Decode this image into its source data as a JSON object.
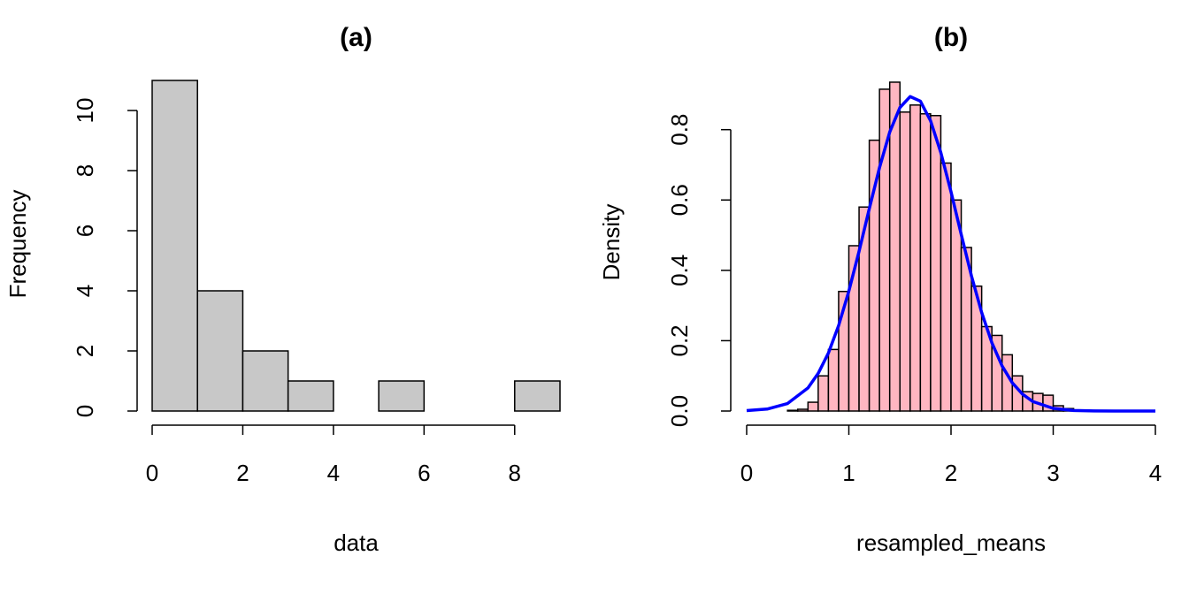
{
  "chart_data": [
    {
      "type": "histogram",
      "title": "(a)",
      "xlabel": "data",
      "ylabel": "Frequency",
      "bins": [
        0,
        1,
        2,
        3,
        4,
        5,
        6,
        7,
        8,
        9
      ],
      "counts": [
        11,
        4,
        2,
        1,
        0,
        1,
        0,
        0,
        1
      ],
      "color": "#c8c8c8",
      "xlim": [
        0,
        9
      ],
      "xticks": [
        0,
        2,
        4,
        6,
        8
      ],
      "ylim": [
        0,
        11
      ],
      "yticks": [
        0,
        2,
        4,
        6,
        8,
        10
      ],
      "grid": false
    },
    {
      "type": "histogram",
      "title": "(b)",
      "xlabel": "resampled_means",
      "ylabel": "Density",
      "bins": [
        0.4,
        0.5,
        0.6,
        0.7,
        0.8,
        0.9,
        1.0,
        1.1,
        1.2,
        1.3,
        1.4,
        1.5,
        1.6,
        1.7,
        1.8,
        1.9,
        2.0,
        2.1,
        2.2,
        2.3,
        2.4,
        2.5,
        2.6,
        2.7,
        2.8,
        2.9,
        3.0,
        3.1,
        3.2,
        3.3
      ],
      "counts": [
        0.002,
        0.005,
        0.025,
        0.1,
        0.175,
        0.34,
        0.47,
        0.58,
        0.77,
        0.915,
        0.935,
        0.85,
        0.87,
        0.845,
        0.84,
        0.705,
        0.6,
        0.465,
        0.355,
        0.24,
        0.215,
        0.16,
        0.1,
        0.055,
        0.05,
        0.045,
        0.015,
        0.007,
        0.003
      ],
      "color": "#ffb6c1",
      "curve": {
        "color": "#0000ff",
        "x": [
          0,
          0.2,
          0.4,
          0.6,
          0.7,
          0.8,
          0.9,
          1.0,
          1.1,
          1.2,
          1.3,
          1.4,
          1.5,
          1.6,
          1.7,
          1.8,
          1.9,
          2.0,
          2.1,
          2.2,
          2.3,
          2.4,
          2.5,
          2.6,
          2.7,
          2.8,
          3.0,
          3.2,
          3.4,
          3.6,
          4.0
        ],
        "values": [
          0.0012,
          0.0056,
          0.0213,
          0.0656,
          0.107,
          0.165,
          0.243,
          0.341,
          0.454,
          0.575,
          0.692,
          0.793,
          0.863,
          0.894,
          0.881,
          0.825,
          0.735,
          0.623,
          0.502,
          0.384,
          0.28,
          0.194,
          0.128,
          0.08,
          0.048,
          0.027,
          0.0075,
          0.0017,
          0.0003,
          5e-05,
          0
        ]
      },
      "xlim": [
        0,
        4
      ],
      "xticks": [
        0,
        1,
        2,
        3,
        4
      ],
      "ylim": [
        0,
        0.95
      ],
      "yticks": [
        {
          "value": 0,
          "label": "0.0"
        },
        0.2,
        0.4,
        0.6,
        0.8
      ],
      "grid": false
    }
  ]
}
